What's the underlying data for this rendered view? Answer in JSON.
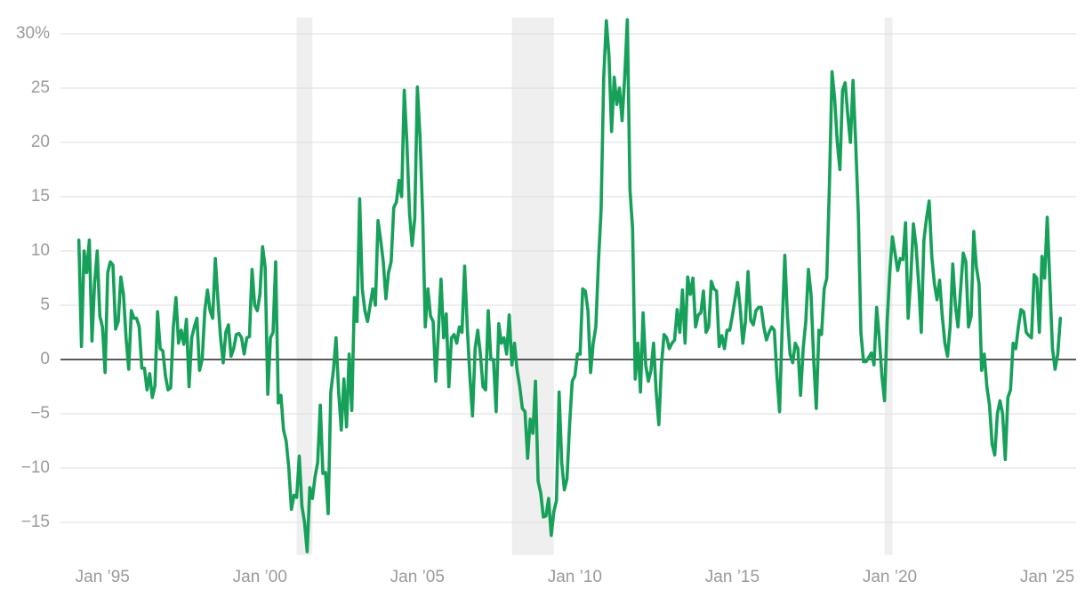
{
  "chart_data": {
    "type": "line",
    "color": "#17a05a",
    "grid": true,
    "xlim": [
      "1993-09",
      "2025-12"
    ],
    "xticks": [
      {
        "value": "1995-01",
        "label": "Jan ’95"
      },
      {
        "value": "2000-01",
        "label": "Jan ’00"
      },
      {
        "value": "2005-01",
        "label": "Jan ’05"
      },
      {
        "value": "2010-01",
        "label": "Jan ’10"
      },
      {
        "value": "2015-01",
        "label": "Jan ’15"
      },
      {
        "value": "2020-01",
        "label": "Jan ’20"
      },
      {
        "value": "2025-01",
        "label": "Jan ’25"
      }
    ],
    "ylim": [
      -18,
      31.5
    ],
    "yticks": [
      {
        "value": 30,
        "label": "30%"
      },
      25,
      20,
      15,
      10,
      5,
      0,
      {
        "value": -5,
        "label": "−5"
      },
      {
        "value": -10,
        "label": "−10"
      },
      {
        "value": -15,
        "label": "−15"
      }
    ],
    "recessions": [
      [
        "2001-03",
        "2001-09"
      ],
      [
        "2008-01",
        "2009-05"
      ],
      [
        "2019-11",
        "2020-02"
      ]
    ],
    "x": [
      "1994-04",
      "1994-05",
      "1994-06",
      "1994-07",
      "1994-08",
      "1994-09",
      "1994-10",
      "1994-11",
      "1994-12",
      "1995-01",
      "1995-02",
      "1995-03",
      "1995-04",
      "1995-05",
      "1995-06",
      "1995-07",
      "1995-08",
      "1995-09",
      "1995-10",
      "1995-11",
      "1995-12",
      "1996-01",
      "1996-02",
      "1996-03",
      "1996-04",
      "1996-05",
      "1996-06",
      "1996-07",
      "1996-08",
      "1996-09",
      "1996-10",
      "1996-11",
      "1996-12",
      "1997-01",
      "1997-02",
      "1997-03",
      "1997-04",
      "1997-05",
      "1997-06",
      "1997-07",
      "1997-08",
      "1997-09",
      "1997-10",
      "1997-11",
      "1997-12",
      "1998-01",
      "1998-02",
      "1998-03",
      "1998-04",
      "1998-05",
      "1998-06",
      "1998-07",
      "1998-08",
      "1998-09",
      "1998-10",
      "1998-11",
      "1998-12",
      "1999-01",
      "1999-02",
      "1999-03",
      "1999-04",
      "1999-05",
      "1999-06",
      "1999-07",
      "1999-08",
      "1999-09",
      "1999-10",
      "1999-11",
      "1999-12",
      "2000-01",
      "2000-02",
      "2000-03",
      "2000-04",
      "2000-05",
      "2000-06",
      "2000-07",
      "2000-08",
      "2000-09",
      "2000-10",
      "2000-11",
      "2000-12",
      "2001-01",
      "2001-02",
      "2001-03",
      "2001-04",
      "2001-05",
      "2001-06",
      "2001-07",
      "2001-08",
      "2001-09",
      "2001-10",
      "2001-11",
      "2001-12",
      "2002-01",
      "2002-02",
      "2002-03",
      "2002-04",
      "2002-05",
      "2002-06",
      "2002-07",
      "2002-08",
      "2002-09",
      "2002-10",
      "2002-11",
      "2002-12",
      "2003-01",
      "2003-02",
      "2003-03",
      "2003-04",
      "2003-05",
      "2003-06",
      "2003-07",
      "2003-08",
      "2003-09",
      "2003-10",
      "2003-11",
      "2003-12",
      "2004-01",
      "2004-02",
      "2004-03",
      "2004-04",
      "2004-05",
      "2004-06",
      "2004-07",
      "2004-08",
      "2004-09",
      "2004-10",
      "2004-11",
      "2004-12",
      "2005-01",
      "2005-02",
      "2005-03",
      "2005-04",
      "2005-05",
      "2005-06",
      "2005-07",
      "2005-08",
      "2005-09",
      "2005-10",
      "2005-11",
      "2005-12",
      "2006-01",
      "2006-02",
      "2006-03",
      "2006-04",
      "2006-05",
      "2006-06",
      "2006-07",
      "2006-08",
      "2006-09",
      "2006-10",
      "2006-11",
      "2006-12",
      "2007-01",
      "2007-02",
      "2007-03",
      "2007-04",
      "2007-05",
      "2007-06",
      "2007-07",
      "2007-08",
      "2007-09",
      "2007-10",
      "2007-11",
      "2007-12",
      "2008-01",
      "2008-02",
      "2008-03",
      "2008-04",
      "2008-05",
      "2008-06",
      "2008-07",
      "2008-08",
      "2008-09",
      "2008-10",
      "2008-11",
      "2008-12",
      "2009-01",
      "2009-02",
      "2009-03",
      "2009-04",
      "2009-05",
      "2009-06",
      "2009-07",
      "2009-08",
      "2009-09",
      "2009-10",
      "2009-11",
      "2009-12",
      "2010-01",
      "2010-02",
      "2010-03",
      "2010-04",
      "2010-05",
      "2010-06",
      "2010-07",
      "2010-08",
      "2010-09",
      "2010-10",
      "2010-11",
      "2010-12",
      "2011-01",
      "2011-02",
      "2011-03",
      "2011-04",
      "2011-05",
      "2011-06",
      "2011-07",
      "2011-08",
      "2011-09",
      "2011-10",
      "2011-11",
      "2011-12",
      "2012-01",
      "2012-02",
      "2012-03",
      "2012-04",
      "2012-05",
      "2012-06",
      "2012-07",
      "2012-08",
      "2012-09",
      "2012-10",
      "2012-11",
      "2012-12",
      "2013-01",
      "2013-02",
      "2013-03",
      "2013-04",
      "2013-05",
      "2013-06",
      "2013-07",
      "2013-08",
      "2013-09",
      "2013-10",
      "2013-11",
      "2013-12",
      "2014-01",
      "2014-02",
      "2014-03",
      "2014-04",
      "2014-05",
      "2014-06",
      "2014-07",
      "2014-08",
      "2014-09",
      "2014-10",
      "2014-11",
      "2014-12",
      "2015-01",
      "2015-02",
      "2015-03",
      "2015-04",
      "2015-05",
      "2015-06",
      "2015-07",
      "2015-08",
      "2015-09",
      "2015-10",
      "2015-11",
      "2015-12",
      "2016-01",
      "2016-02",
      "2016-03",
      "2016-04",
      "2016-05",
      "2016-06",
      "2016-07",
      "2016-08",
      "2016-09",
      "2016-10",
      "2016-11",
      "2016-12",
      "2017-01",
      "2017-02",
      "2017-03",
      "2017-04",
      "2017-05",
      "2017-06",
      "2017-07",
      "2017-08",
      "2017-09",
      "2017-10",
      "2017-11",
      "2017-12",
      "2018-01",
      "2018-02",
      "2018-03",
      "2018-04",
      "2018-05",
      "2018-06",
      "2018-07",
      "2018-08",
      "2018-09",
      "2018-10",
      "2018-11",
      "2018-12",
      "2019-01",
      "2019-02",
      "2019-03",
      "2019-04",
      "2019-05",
      "2019-06",
      "2019-07",
      "2019-08",
      "2019-09",
      "2019-10",
      "2019-11",
      "2019-12",
      "2020-01",
      "2020-02",
      "2020-03",
      "2020-04",
      "2020-05",
      "2020-06",
      "2020-07",
      "2020-08",
      "2020-09",
      "2020-10",
      "2020-11",
      "2020-12",
      "2021-01",
      "2021-02",
      "2021-03",
      "2021-04",
      "2021-05",
      "2021-06",
      "2021-07",
      "2021-08",
      "2021-09",
      "2021-10",
      "2021-11",
      "2021-12",
      "2022-01",
      "2022-02",
      "2022-03",
      "2022-04",
      "2022-05",
      "2022-06",
      "2022-07",
      "2022-08",
      "2022-09",
      "2022-10",
      "2022-11",
      "2022-12",
      "2023-01",
      "2023-02",
      "2023-03",
      "2023-04",
      "2023-05",
      "2023-06",
      "2023-07",
      "2023-08",
      "2023-09",
      "2023-10",
      "2023-11",
      "2023-12",
      "2024-01",
      "2024-02",
      "2024-03",
      "2024-04",
      "2024-05",
      "2024-06",
      "2024-07",
      "2024-08",
      "2024-09",
      "2024-10",
      "2024-11",
      "2024-12",
      "2025-01",
      "2025-02",
      "2025-03",
      "2025-04",
      "2025-05",
      "2025-06"
    ],
    "values": [
      11,
      1.2,
      10,
      8,
      11,
      1.7,
      7,
      10,
      4,
      3,
      -1.2,
      8,
      9,
      8.7,
      2.8,
      3.5,
      7.6,
      6,
      2,
      -0.9,
      4.5,
      3.8,
      3.8,
      3,
      -0.8,
      -0.8,
      -2.8,
      -1.3,
      -3.5,
      -2.4,
      4.4,
      1,
      0.8,
      -1.5,
      -2.8,
      -2.6,
      3,
      5.7,
      1.5,
      2.7,
      1.4,
      3.7,
      -2.5,
      2,
      3,
      3.8,
      -1,
      0,
      4.5,
      6.4,
      4.5,
      3.8,
      9.3,
      5.5,
      2,
      -0.3,
      2.5,
      3.2,
      0.3,
      1,
      2.3,
      2.4,
      2,
      0.5,
      2,
      2.1,
      8.3,
      5,
      4.5,
      6,
      10.4,
      8.5,
      -3.2,
      2,
      2.5,
      9,
      -4,
      -3.3,
      -6.5,
      -7.5,
      -10,
      -13.8,
      -12.5,
      -12.7,
      -8.9,
      -13.5,
      -15,
      -17.7,
      -11.8,
      -12.8,
      -10.8,
      -9.5,
      -4.2,
      -10.5,
      -10.4,
      -14.2,
      -3,
      -1,
      2,
      -3,
      -6.5,
      -1.8,
      -6.2,
      0.5,
      -4.7,
      5.7,
      3.5,
      14.8,
      6.5,
      4.5,
      3.5,
      5,
      6.5,
      5,
      12.8,
      11,
      9,
      5.6,
      8,
      9,
      14,
      14.5,
      16.5,
      15,
      24.8,
      20,
      13.5,
      10.5,
      13,
      25.1,
      20.5,
      13.5,
      3,
      6.5,
      4,
      3.5,
      -2,
      2.5,
      7.4,
      2,
      4.2,
      -2.5,
      2,
      2.3,
      1.5,
      3,
      2.5,
      8.6,
      3,
      -1.5,
      -5.2,
      1,
      2.7,
      0.5,
      -2.5,
      -2.8,
      4.5,
      0,
      0,
      -4.8,
      3.3,
      1.5,
      2,
      0.5,
      4.1,
      -0.5,
      1.5,
      -1,
      -2.5,
      -4.5,
      -4.8,
      -9.1,
      -5.5,
      -6.8,
      -2,
      -11.2,
      -12.3,
      -14.5,
      -14.4,
      -12.8,
      -16.2,
      -14,
      -13,
      -3,
      -9.5,
      -12,
      -11,
      -6,
      -2,
      -1.5,
      0.5,
      0.5,
      6.5,
      6.3,
      4.5,
      -1.2,
      1.5,
      3,
      9,
      13.8,
      26,
      31.2,
      28,
      21,
      26,
      23.5,
      25,
      22,
      26,
      31.3,
      15.7,
      12,
      -1.8,
      1.5,
      -3,
      4.3,
      -0.5,
      -2,
      -1,
      1.5,
      -3,
      -6,
      -0.5,
      2.3,
      2,
      1,
      1.5,
      1.8,
      4.6,
      2.5,
      6.4,
      1.5,
      7.6,
      6,
      7.5,
      3,
      4.1,
      4.3,
      6.3,
      2.5,
      3,
      7.2,
      6.5,
      6.3,
      1.2,
      2.2,
      1,
      2.7,
      2.7,
      4,
      5.5,
      7.1,
      4.8,
      1.5,
      3.5,
      8.1,
      3.6,
      3.2,
      4.5,
      4.8,
      4.8,
      3,
      1.8,
      2.5,
      3,
      2.7,
      -1.5,
      -4.8,
      3,
      9.6,
      4,
      0.5,
      -0.3,
      1.5,
      1,
      -3.3,
      1,
      3.5,
      8.3,
      6,
      0,
      -4.5,
      2.7,
      2.3,
      6.5,
      7.5,
      16,
      26.5,
      24,
      20,
      17.5,
      24.8,
      25.5,
      22.5,
      20,
      25.7,
      20,
      13.5,
      2.5,
      -0.2,
      -0.2,
      0.2,
      0.6,
      -0.5,
      4.8,
      2,
      -1.5,
      -3.8,
      3.5,
      8,
      11.3,
      9.8,
      8.2,
      9.3,
      9.2,
      12.6,
      3.8,
      7.5,
      12.5,
      10.5,
      7,
      2.5,
      11,
      13,
      14.6,
      9.5,
      7,
      5.5,
      7.3,
      4,
      1.5,
      0.3,
      3,
      8.8,
      5,
      3,
      6.5,
      9.8,
      9,
      3,
      4,
      11.8,
      8.5,
      7,
      -1,
      0.5,
      -2.5,
      -4.2,
      -7.8,
      -8.8,
      -5,
      -3.8,
      -5,
      -9.2,
      -3.5,
      -2.8,
      1.5,
      1,
      3,
      4.6,
      4.4,
      2.5,
      2.2,
      2,
      7.8,
      7.5,
      2.5,
      9.5,
      7.5,
      13.1,
      7,
      1,
      -0.9,
      0.5,
      3.8
    ]
  }
}
